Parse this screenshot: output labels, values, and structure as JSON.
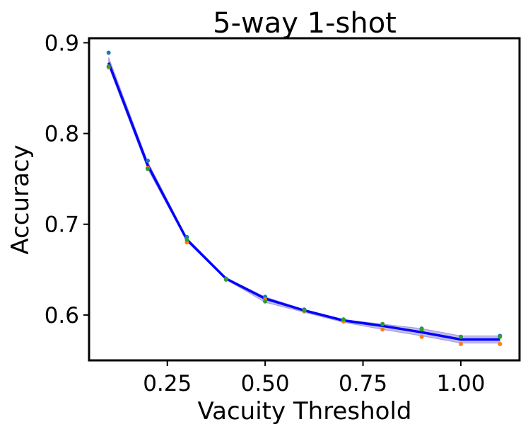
{
  "chart_data": {
    "type": "line",
    "title": "5-way 1-shot",
    "xlabel": "Vacuity Threshold",
    "ylabel": "Accuracy",
    "xlim": [
      0.05,
      1.15
    ],
    "ylim": [
      0.55,
      0.905
    ],
    "xticks": [
      0.25,
      0.5,
      0.75,
      1.0
    ],
    "xtick_labels": [
      "0.25",
      "0.50",
      "0.75",
      "1.00"
    ],
    "yticks": [
      0.6,
      0.7,
      0.8,
      0.9
    ],
    "ytick_labels": [
      "0.6",
      "0.7",
      "0.8",
      "0.9"
    ],
    "grid": false,
    "legend": "none",
    "x": [
      0.1,
      0.2,
      0.3,
      0.4,
      0.5,
      0.6,
      0.7,
      0.8,
      0.9,
      1.0,
      1.1
    ],
    "mean": {
      "color": "#0000ff",
      "values": [
        0.878,
        0.765,
        0.683,
        0.64,
        0.618,
        0.605,
        0.594,
        0.588,
        0.581,
        0.573,
        0.573
      ]
    },
    "band": {
      "color": "#6a5acd",
      "lower": [
        0.874,
        0.761,
        0.681,
        0.639,
        0.614,
        0.603,
        0.592,
        0.584,
        0.577,
        0.569,
        0.569
      ],
      "upper": [
        0.884,
        0.769,
        0.685,
        0.641,
        0.62,
        0.606,
        0.595,
        0.59,
        0.585,
        0.577,
        0.577
      ]
    },
    "points": [
      {
        "color": "#1f77b4",
        "values": [
          0.889,
          0.77,
          0.686,
          0.64,
          0.62,
          0.606,
          0.595,
          0.59,
          0.585,
          0.576,
          0.577
        ]
      },
      {
        "color": "#ff7f0e",
        "values": [
          0.873,
          0.762,
          0.68,
          0.639,
          0.617,
          0.604,
          0.593,
          0.584,
          0.576,
          0.568,
          0.568
        ]
      },
      {
        "color": "#2ca02c",
        "values": [
          0.874,
          0.761,
          0.683,
          0.639,
          0.615,
          0.605,
          0.595,
          0.59,
          0.584,
          0.576,
          0.576
        ]
      }
    ]
  }
}
